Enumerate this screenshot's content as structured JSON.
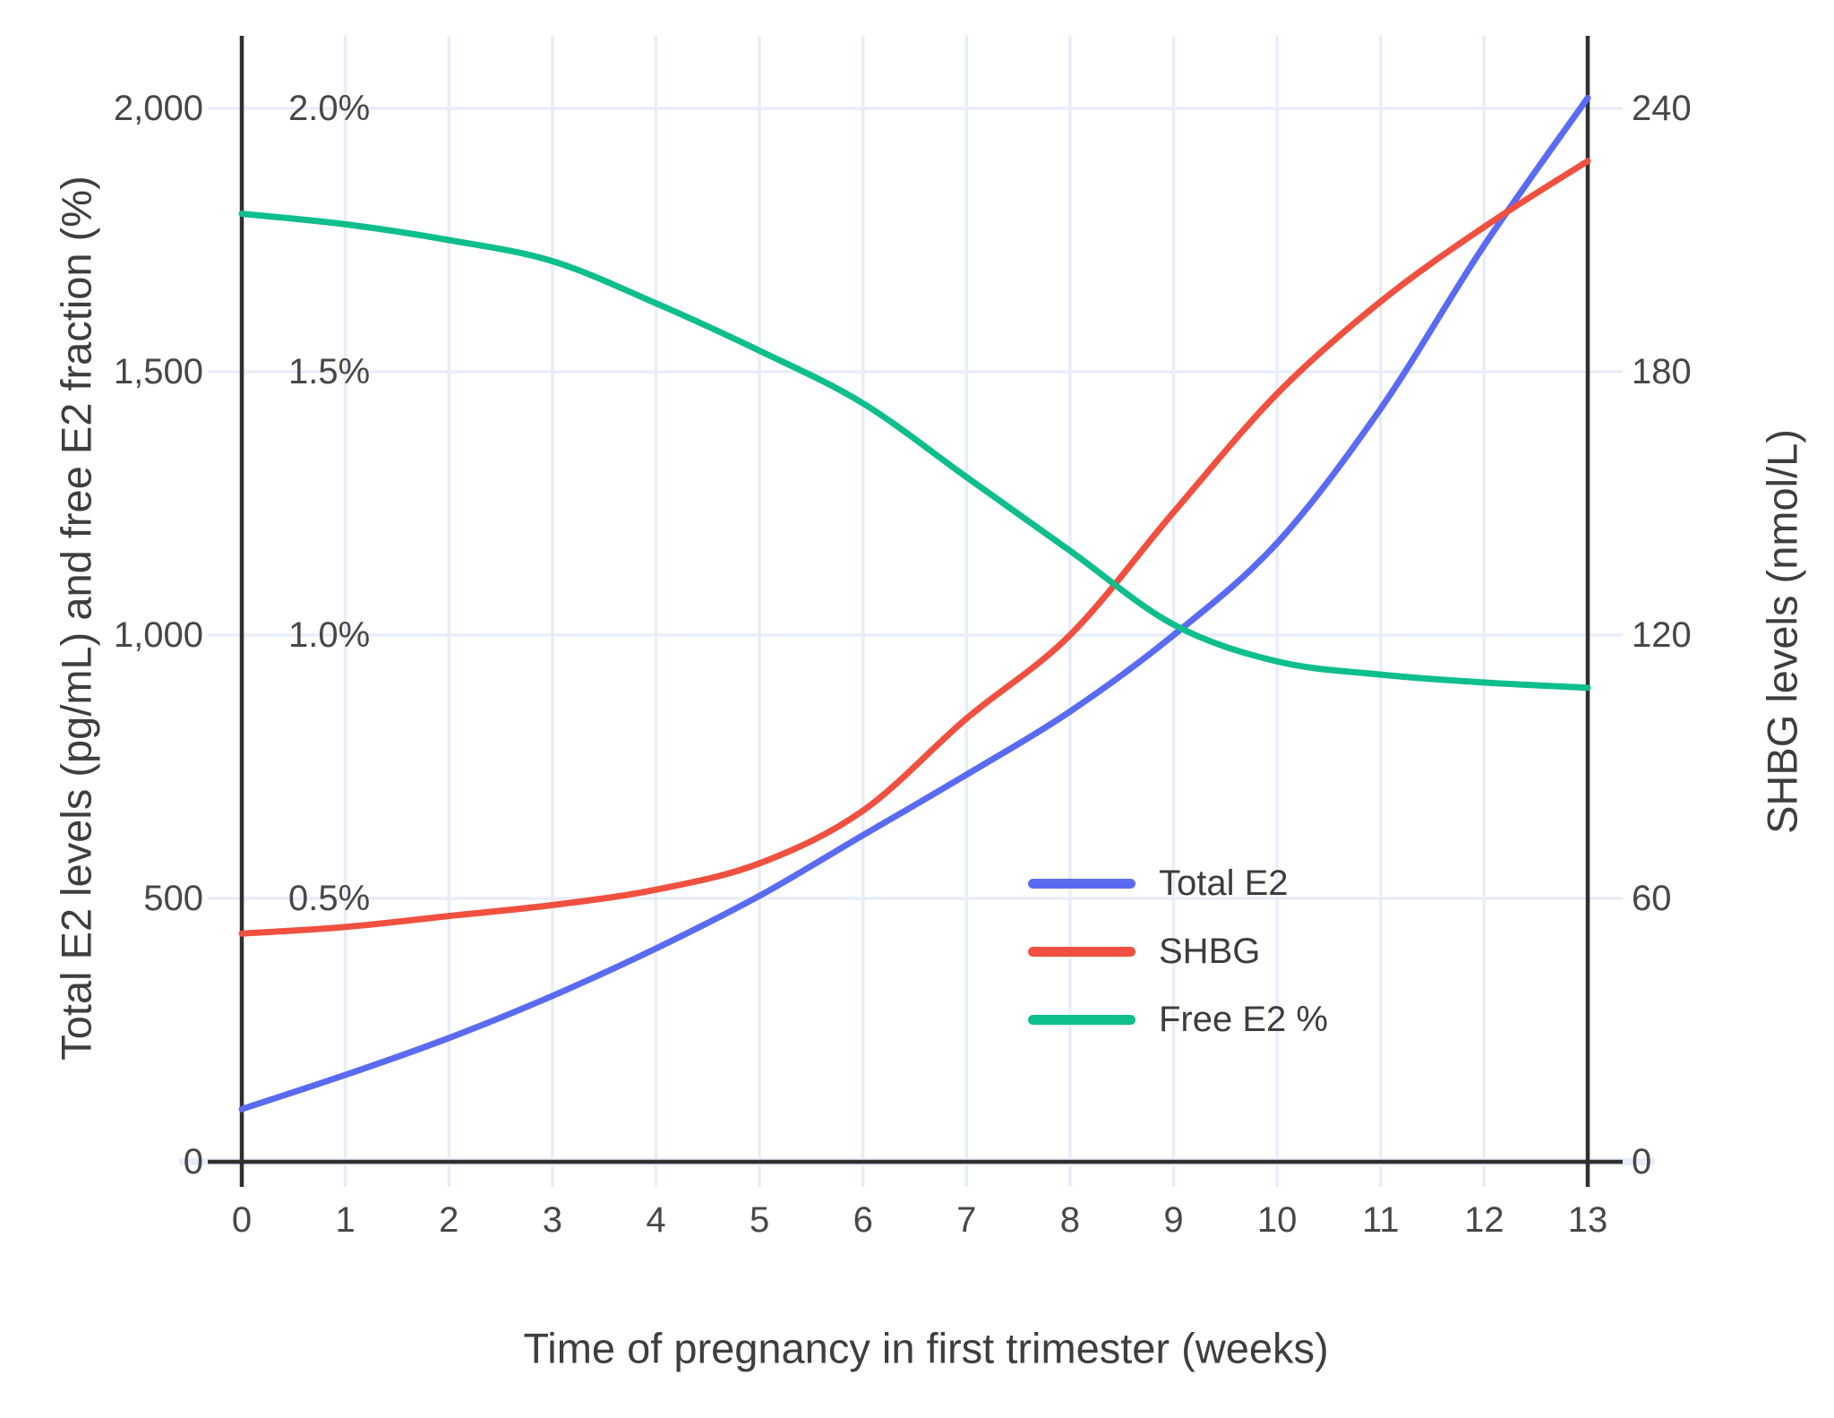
{
  "chart": {
    "x_axis": {
      "title": "Time of pregnancy in first trimester (weeks)",
      "tick_labels": [
        "0",
        "1",
        "2",
        "3",
        "4",
        "5",
        "6",
        "7",
        "8",
        "9",
        "10",
        "11",
        "12",
        "13"
      ]
    },
    "y_left_axis": {
      "title": "Total E2 levels (pg/mL) and free E2 fraction (%)",
      "tick_labels": [
        "0",
        "500",
        "1,000",
        "1,500",
        "2,000"
      ],
      "percent_tick_labels": [
        "0.5%",
        "1.0%",
        "1.5%",
        "2.0%"
      ]
    },
    "y_right_axis": {
      "title": "SHBG levels (nmol/L)",
      "tick_labels": [
        "0",
        "60",
        "120",
        "180",
        "240"
      ]
    },
    "legend": {
      "items": [
        {
          "label": "Total E2",
          "color": "#5a6bf2"
        },
        {
          "label": "SHBG",
          "color": "#f0503f"
        },
        {
          "label": "Free E2 %",
          "color": "#0ebe8d"
        }
      ]
    }
  },
  "chart_data": {
    "type": "line",
    "title": "",
    "xlabel": "Time of pregnancy in first trimester (weeks)",
    "x": [
      0,
      1,
      2,
      3,
      4,
      5,
      6,
      7,
      8,
      9,
      10,
      11,
      12,
      13
    ],
    "x_range": [
      0,
      13
    ],
    "y_left": {
      "label": "Total E2 levels (pg/mL) and free E2 fraction (%)",
      "range": [
        0,
        2000
      ],
      "ticks": [
        0,
        500,
        1000,
        1500,
        2000
      ],
      "percent_ticks": [
        0.5,
        1.0,
        1.5,
        2.0
      ],
      "percent_scale_note": "free E2 fraction axis: 0.5% aligns with 500, 2.0% aligns with 2000"
    },
    "y_right": {
      "label": "SHBG levels (nmol/L)",
      "range": [
        0,
        240
      ],
      "ticks": [
        0,
        60,
        120,
        180,
        240
      ]
    },
    "grid": true,
    "legend_position": "inside lower-right of plot",
    "series": [
      {
        "name": "Total E2",
        "axis": "left",
        "unit": "pg/mL",
        "color": "#5a6bf2",
        "values": [
          100,
          165,
          235,
          315,
          405,
          505,
          620,
          735,
          855,
          1000,
          1175,
          1430,
          1740,
          2020
        ]
      },
      {
        "name": "SHBG",
        "axis": "right",
        "unit": "nmol/L",
        "color": "#f0503f",
        "values": [
          52,
          53.5,
          56,
          58.5,
          62,
          68,
          80,
          101,
          120,
          148,
          175,
          196,
          213,
          228
        ]
      },
      {
        "name": "Free E2 %",
        "axis": "left_percent",
        "unit": "%",
        "color": "#0ebe8d",
        "values": [
          1.8,
          1.78,
          1.75,
          1.71,
          1.63,
          1.54,
          1.44,
          1.3,
          1.16,
          1.02,
          0.95,
          0.925,
          0.91,
          0.9
        ]
      }
    ]
  },
  "colors": {
    "background": "#ffffff",
    "gridline": "#e8edf8",
    "axis_line": "#2f2f2f",
    "tick_text": "#474747",
    "title_text": "#3e3e3e",
    "total_e2": "#5a6bf2",
    "shbg": "#f0503f",
    "free_e2": "#0ebe8d"
  }
}
